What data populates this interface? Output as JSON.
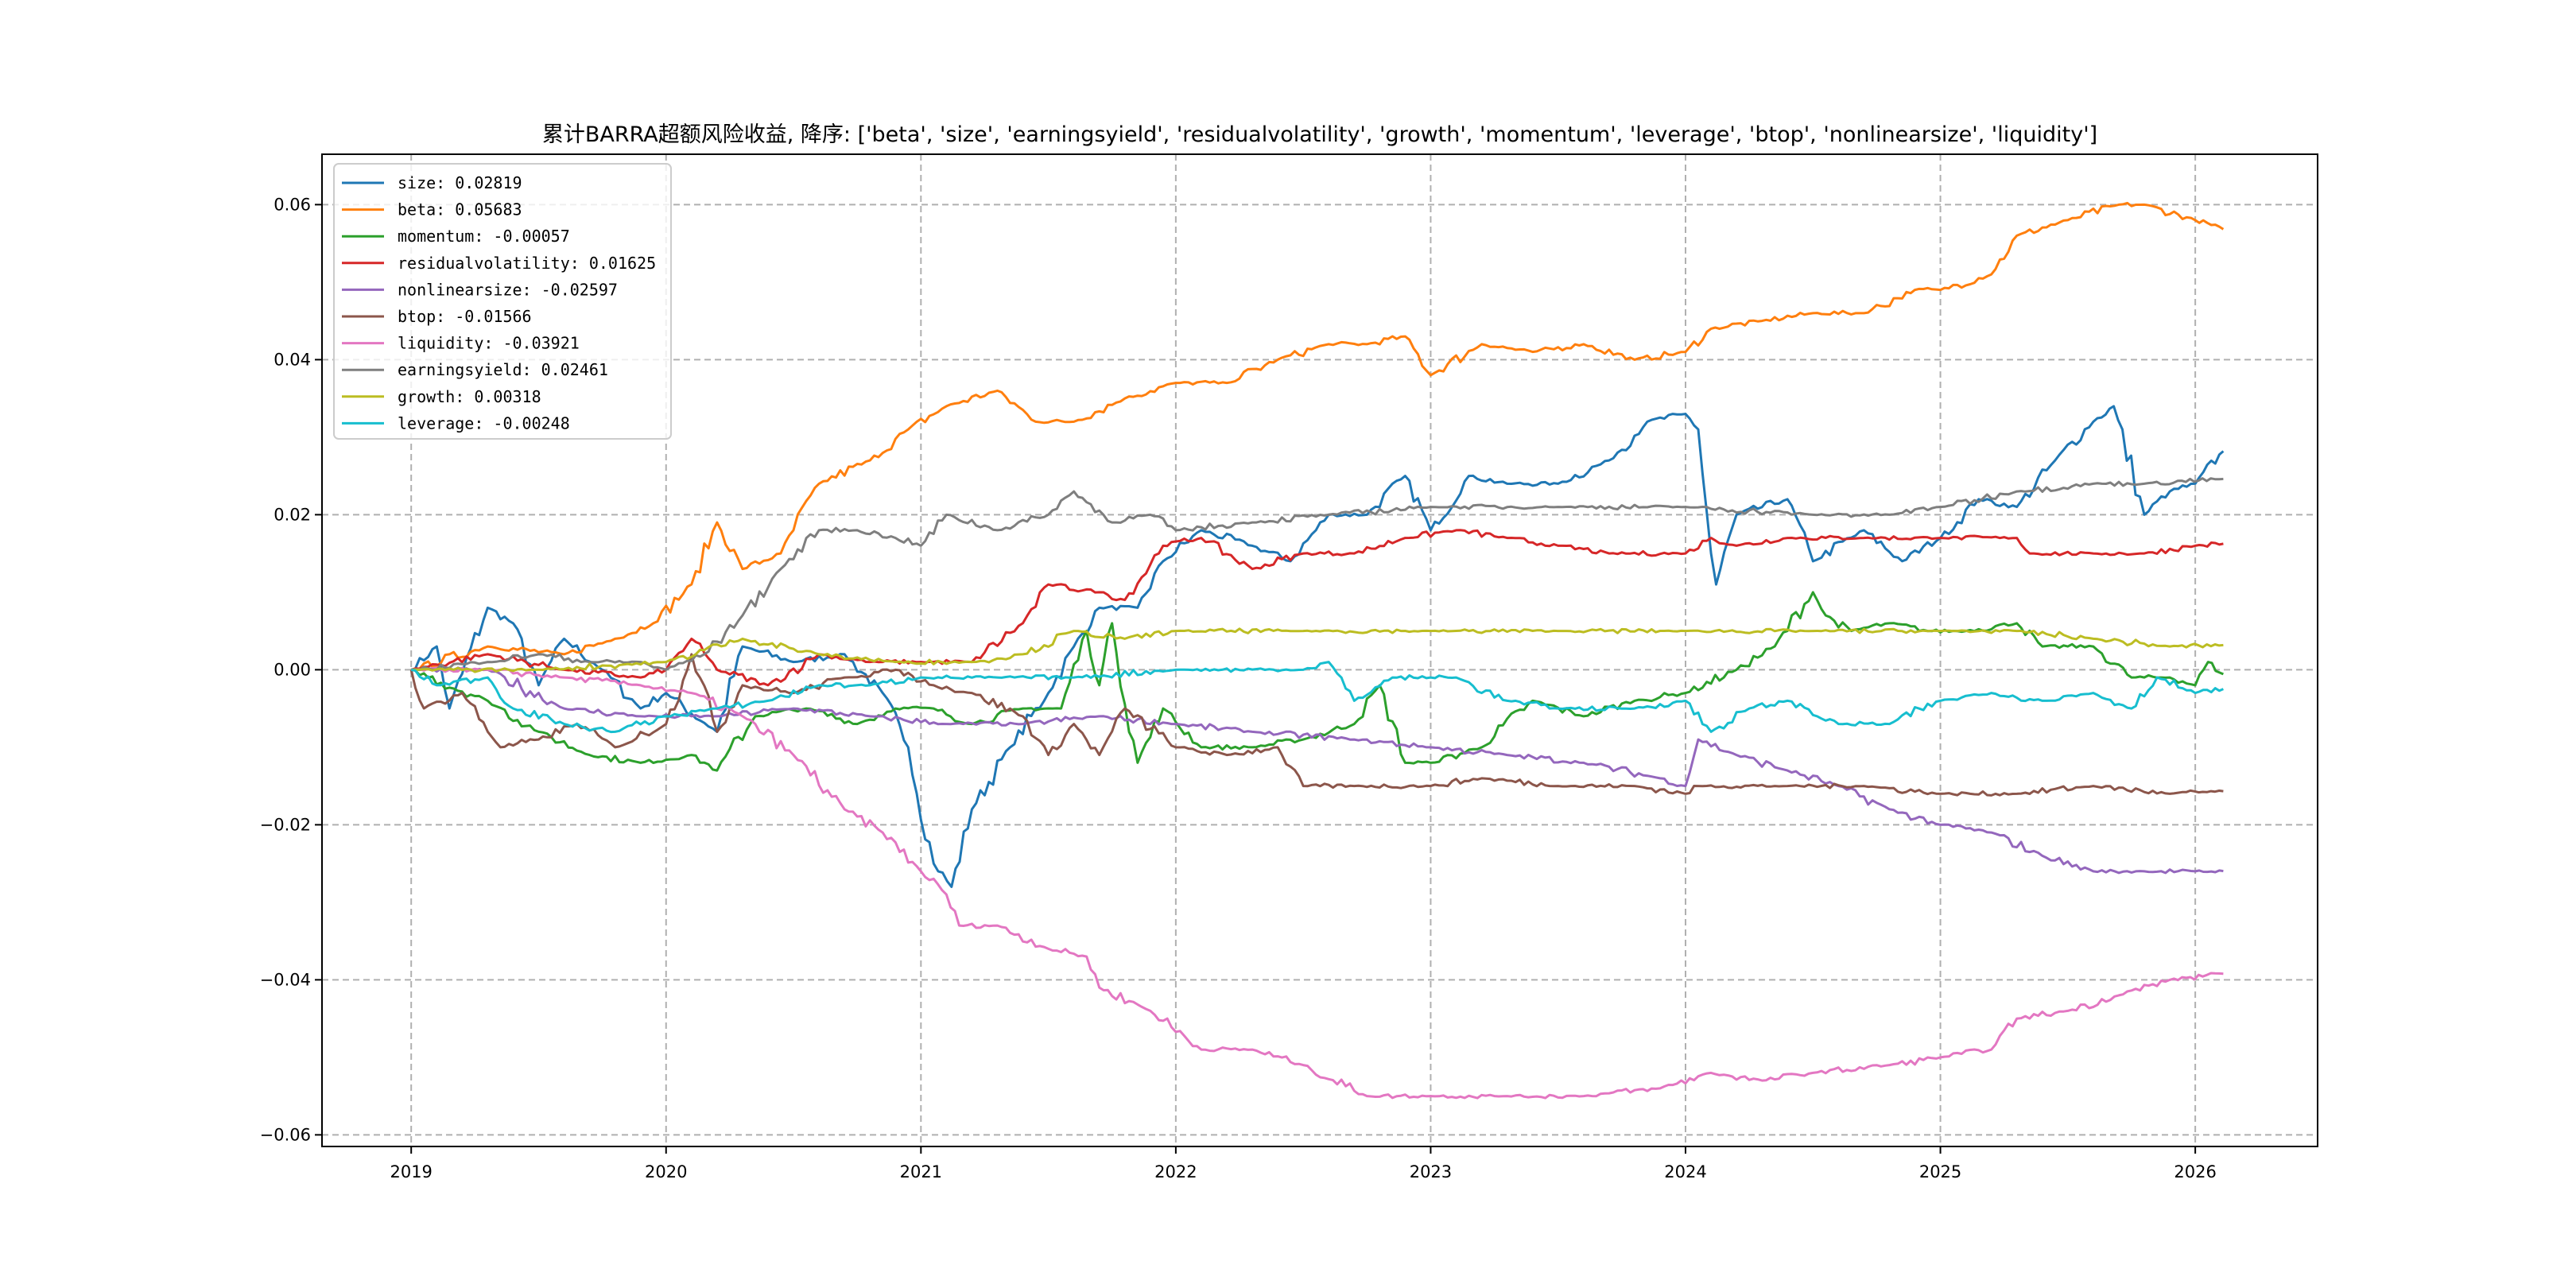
{
  "chart_data": {
    "type": "line",
    "title": "累计BARRA超额风险收益,  降序: ['beta', 'size', 'earningsyield', 'residualvolatility', 'growth', 'momentum', 'leverage', 'btop', 'nonlinearsize', 'liquidity']",
    "xlabel": "",
    "ylabel": "",
    "xlim": [
      2018.65,
      2026.48
    ],
    "ylim": [
      -0.0615,
      0.0665
    ],
    "xticks": [
      2019,
      2020,
      2021,
      2022,
      2023,
      2024,
      2025,
      2026
    ],
    "xtick_labels": [
      "2019",
      "2020",
      "2021",
      "2022",
      "2023",
      "2024",
      "2025",
      "2026"
    ],
    "yticks": [
      0.06,
      0.04,
      0.02,
      0.0,
      -0.02,
      -0.04,
      -0.06
    ],
    "ytick_labels": [
      "0.06",
      "0.04",
      "0.02",
      "0.00",
      "−0.02",
      "−0.04",
      "−0.06"
    ],
    "grid": true,
    "legend_position": "top-left",
    "series": [
      {
        "name": "size",
        "label": "size: 0.02819",
        "color": "#1f77b4",
        "x": [
          2019,
          2019.1,
          2019.15,
          2019.3,
          2019.4,
          2019.5,
          2019.6,
          2019.75,
          2019.9,
          2020,
          2020.2,
          2020.3,
          2020.5,
          2020.7,
          2020.85,
          2020.95,
          2021.05,
          2021.12,
          2021.2,
          2021.35,
          2021.5,
          2021.6,
          2021.7,
          2021.85,
          2021.95,
          2022.1,
          2022.3,
          2022.45,
          2022.6,
          2022.75,
          2022.9,
          2023,
          2023.15,
          2023.3,
          2023.5,
          2023.7,
          2023.85,
          2024,
          2024.05,
          2024.1,
          2024.12,
          2024.2,
          2024.4,
          2024.5,
          2024.7,
          2024.85,
          2025,
          2025.15,
          2025.3,
          2025.45,
          2025.6,
          2025.68,
          2025.8,
          2025.9,
          2026,
          2026.11
        ],
        "y": [
          0,
          0.003,
          -0.005,
          0.008,
          0.006,
          -0.002,
          0.004,
          0,
          -0.005,
          -0.003,
          -0.008,
          0.003,
          0.001,
          0.002,
          -0.003,
          -0.01,
          -0.025,
          -0.028,
          -0.018,
          -0.01,
          -0.003,
          0.003,
          0.008,
          0.008,
          0.014,
          0.018,
          0.016,
          0.014,
          0.02,
          0.02,
          0.025,
          0.018,
          0.025,
          0.024,
          0.024,
          0.027,
          0.032,
          0.033,
          0.031,
          0.015,
          0.011,
          0.02,
          0.022,
          0.014,
          0.018,
          0.014,
          0.017,
          0.022,
          0.021,
          0.027,
          0.032,
          0.034,
          0.02,
          0.023,
          0.024,
          0.02819
        ]
      },
      {
        "name": "beta",
        "label": "beta: 0.05683",
        "color": "#ff7f0e",
        "x": [
          2019,
          2019.3,
          2019.6,
          2019.8,
          2019.95,
          2020.1,
          2020.2,
          2020.3,
          2020.45,
          2020.6,
          2020.8,
          2020.95,
          2021.1,
          2021.3,
          2021.45,
          2021.6,
          2021.8,
          2022,
          2022.2,
          2022.4,
          2022.6,
          2022.75,
          2022.9,
          2023,
          2023.2,
          2023.4,
          2023.6,
          2023.8,
          2024,
          2024.1,
          2024.3,
          2024.5,
          2024.7,
          2024.9,
          2025,
          2025.2,
          2025.3,
          2025.5,
          2025.7,
          2025.8,
          2026,
          2026.11
        ],
        "y": [
          0,
          0.003,
          0.002,
          0.004,
          0.006,
          0.011,
          0.019,
          0.013,
          0.015,
          0.024,
          0.027,
          0.031,
          0.034,
          0.036,
          0.032,
          0.032,
          0.035,
          0.037,
          0.037,
          0.04,
          0.042,
          0.042,
          0.043,
          0.038,
          0.042,
          0.041,
          0.042,
          0.04,
          0.041,
          0.044,
          0.045,
          0.046,
          0.046,
          0.049,
          0.049,
          0.051,
          0.056,
          0.058,
          0.06,
          0.06,
          0.058,
          0.05683
        ]
      },
      {
        "name": "momentum",
        "label": "momentum: -0.00057",
        "color": "#2ca02c",
        "x": [
          2019,
          2019.3,
          2019.5,
          2019.7,
          2019.9,
          2020.1,
          2020.2,
          2020.35,
          2020.55,
          2020.75,
          2020.9,
          2021.05,
          2021.2,
          2021.4,
          2021.55,
          2021.65,
          2021.7,
          2021.75,
          2021.85,
          2021.95,
          2022.1,
          2022.3,
          2022.5,
          2022.7,
          2022.8,
          2022.9,
          2023,
          2023.2,
          2023.4,
          2023.6,
          2023.8,
          2024,
          2024.2,
          2024.35,
          2024.5,
          2024.55,
          2024.65,
          2024.8,
          2024.95,
          2025.1,
          2025.3,
          2025.4,
          2025.6,
          2025.75,
          2025.9,
          2026,
          2026.05,
          2026.11
        ],
        "y": [
          0,
          -0.004,
          -0.008,
          -0.011,
          -0.012,
          -0.011,
          -0.013,
          -0.006,
          -0.005,
          -0.007,
          -0.005,
          -0.005,
          -0.007,
          -0.005,
          -0.005,
          0.005,
          -0.002,
          0.006,
          -0.012,
          -0.005,
          -0.01,
          -0.01,
          -0.009,
          -0.007,
          -0.002,
          -0.012,
          -0.012,
          -0.01,
          -0.004,
          -0.006,
          -0.004,
          -0.003,
          0,
          0.003,
          0.01,
          0.007,
          0.005,
          0.006,
          0.005,
          0.005,
          0.006,
          0.003,
          0.003,
          -0.001,
          -0.001,
          -0.002,
          0.001,
          -0.00057
        ]
      },
      {
        "name": "residualvolatility",
        "label": "residualvolatility: 0.01625",
        "color": "#d62728",
        "x": [
          2019,
          2019.3,
          2019.6,
          2019.9,
          2020,
          2020.1,
          2020.2,
          2020.4,
          2020.6,
          2020.8,
          2021,
          2021.2,
          2021.4,
          2021.5,
          2021.7,
          2021.8,
          2021.95,
          2022.1,
          2022.3,
          2022.5,
          2022.7,
          2022.9,
          2023.1,
          2023.3,
          2023.5,
          2023.7,
          2024,
          2024.1,
          2024.2,
          2024.4,
          2024.7,
          2025,
          2025.3,
          2025.35,
          2025.6,
          2025.8,
          2026,
          2026.11
        ],
        "y": [
          0,
          0.002,
          0,
          -0.001,
          0,
          0.004,
          0,
          -0.002,
          0.002,
          0.001,
          0.001,
          0.001,
          0.006,
          0.011,
          0.01,
          0.009,
          0.016,
          0.017,
          0.013,
          0.015,
          0.015,
          0.017,
          0.018,
          0.017,
          0.016,
          0.015,
          0.015,
          0.017,
          0.016,
          0.017,
          0.017,
          0.017,
          0.017,
          0.015,
          0.015,
          0.015,
          0.016,
          0.01625
        ]
      },
      {
        "name": "nonlinearsize",
        "label": "nonlinearsize: -0.02597",
        "color": "#9467bd",
        "x": [
          2019,
          2019.3,
          2019.6,
          2019.9,
          2020.2,
          2020.5,
          2020.8,
          2021.1,
          2021.4,
          2021.7,
          2022,
          2022.3,
          2022.7,
          2023,
          2023.3,
          2023.6,
          2023.9,
          2024,
          2024.05,
          2024.2,
          2024.4,
          2024.6,
          2024.8,
          2025,
          2025.2,
          2025.4,
          2025.6,
          2025.8,
          2026,
          2026.11
        ],
        "y": [
          0,
          0,
          -0.005,
          -0.006,
          -0.006,
          -0.005,
          -0.006,
          -0.007,
          -0.007,
          -0.006,
          -0.007,
          -0.008,
          -0.009,
          -0.01,
          -0.011,
          -0.012,
          -0.014,
          -0.015,
          -0.009,
          -0.011,
          -0.013,
          -0.015,
          -0.018,
          -0.02,
          -0.021,
          -0.024,
          -0.026,
          -0.026,
          -0.026,
          -0.02597
        ]
      },
      {
        "name": "btop",
        "label": "btop: -0.01566",
        "color": "#8c564b",
        "x": [
          2019,
          2019.05,
          2019.2,
          2019.35,
          2019.5,
          2019.65,
          2019.8,
          2020,
          2020.1,
          2020.2,
          2020.3,
          2020.5,
          2020.7,
          2020.9,
          2021.05,
          2021.2,
          2021.4,
          2021.5,
          2021.6,
          2021.7,
          2021.8,
          2022,
          2022.2,
          2022.4,
          2022.5,
          2022.7,
          2023,
          2023.2,
          2023.5,
          2023.8,
          2024,
          2024.05,
          2024.4,
          2024.7,
          2025,
          2025.3,
          2025.6,
          2025.9,
          2026.11
        ],
        "y": [
          0,
          -0.005,
          -0.003,
          -0.01,
          -0.009,
          -0.007,
          -0.01,
          -0.007,
          0.002,
          -0.008,
          -0.002,
          -0.003,
          -0.001,
          0,
          -0.002,
          -0.003,
          -0.006,
          -0.011,
          -0.007,
          -0.011,
          -0.005,
          -0.01,
          -0.011,
          -0.01,
          -0.015,
          -0.015,
          -0.015,
          -0.014,
          -0.015,
          -0.015,
          -0.016,
          -0.015,
          -0.015,
          -0.015,
          -0.016,
          -0.016,
          -0.015,
          -0.016,
          -0.01566
        ]
      },
      {
        "name": "liquidity",
        "label": "liquidity: -0.03921",
        "color": "#e377c2",
        "x": [
          2019,
          2019.3,
          2019.6,
          2019.9,
          2020.1,
          2020.3,
          2020.5,
          2020.7,
          2020.85,
          2021,
          2021.1,
          2021.15,
          2021.3,
          2021.5,
          2021.65,
          2021.7,
          2021.9,
          2022.1,
          2022.3,
          2022.5,
          2022.75,
          2023,
          2023.3,
          2023.6,
          2023.9,
          2024.1,
          2024.3,
          2024.5,
          2024.8,
          2025,
          2025.2,
          2025.3,
          2025.5,
          2025.7,
          2025.9,
          2026.11
        ],
        "y": [
          0,
          0,
          -0.001,
          -0.002,
          -0.003,
          -0.006,
          -0.011,
          -0.018,
          -0.021,
          -0.026,
          -0.029,
          -0.033,
          -0.033,
          -0.036,
          -0.037,
          -0.041,
          -0.044,
          -0.049,
          -0.049,
          -0.051,
          -0.055,
          -0.055,
          -0.055,
          -0.055,
          -0.054,
          -0.052,
          -0.053,
          -0.052,
          -0.051,
          -0.05,
          -0.049,
          -0.045,
          -0.044,
          -0.042,
          -0.04,
          -0.03921
        ]
      },
      {
        "name": "earningsyield",
        "label": "earningsyield: 0.02461",
        "color": "#7f7f7f",
        "x": [
          2019,
          2019.3,
          2019.5,
          2019.7,
          2019.9,
          2020,
          2020.15,
          2020.3,
          2020.45,
          2020.6,
          2020.75,
          2020.9,
          2021,
          2021.1,
          2021.3,
          2021.5,
          2021.6,
          2021.75,
          2021.9,
          2022,
          2022.3,
          2022.6,
          2023,
          2023.5,
          2024,
          2024.5,
          2024.8,
          2025,
          2025.3,
          2025.6,
          2025.8,
          2026.11
        ],
        "y": [
          0,
          0.001,
          0.002,
          0.001,
          0.001,
          0,
          0.002,
          0.007,
          0.013,
          0.018,
          0.018,
          0.017,
          0.016,
          0.02,
          0.018,
          0.02,
          0.023,
          0.019,
          0.02,
          0.018,
          0.019,
          0.02,
          0.021,
          0.021,
          0.021,
          0.02,
          0.02,
          0.021,
          0.023,
          0.024,
          0.024,
          0.02461
        ]
      },
      {
        "name": "growth",
        "label": "growth: 0.00318",
        "color": "#bcbd22",
        "x": [
          2019,
          2019.5,
          2020,
          2020.3,
          2020.6,
          2020.9,
          2021.2,
          2021.4,
          2021.6,
          2021.8,
          2022,
          2022.5,
          2023,
          2023.5,
          2024,
          2024.5,
          2025,
          2025.3,
          2025.6,
          2025.9,
          2026.11
        ],
        "y": [
          0,
          0,
          0.001,
          0.004,
          0.002,
          0.001,
          0.001,
          0.002,
          0.005,
          0.004,
          0.005,
          0.005,
          0.005,
          0.005,
          0.005,
          0.005,
          0.005,
          0.005,
          0.004,
          0.003,
          0.00318
        ]
      },
      {
        "name": "leverage",
        "label": "leverage: -0.00248",
        "color": "#17becf",
        "x": [
          2019,
          2019.1,
          2019.3,
          2019.4,
          2019.6,
          2019.8,
          2020,
          2020.2,
          2020.4,
          2020.6,
          2020.8,
          2021,
          2021.3,
          2021.6,
          2022,
          2022.5,
          2022.6,
          2022.7,
          2022.85,
          2023,
          2023.1,
          2023.3,
          2023.5,
          2023.8,
          2024,
          2024.1,
          2024.25,
          2024.4,
          2024.6,
          2024.8,
          2025,
          2025.2,
          2025.4,
          2025.6,
          2025.75,
          2025.85,
          2026,
          2026.11
        ],
        "y": [
          0,
          -0.002,
          -0.001,
          -0.005,
          -0.007,
          -0.008,
          -0.006,
          -0.005,
          -0.004,
          -0.002,
          -0.002,
          -0.001,
          -0.001,
          -0.001,
          0,
          0,
          0.001,
          -0.004,
          -0.001,
          -0.001,
          -0.001,
          -0.004,
          -0.005,
          -0.005,
          -0.004,
          -0.008,
          -0.005,
          -0.004,
          -0.007,
          -0.007,
          -0.004,
          -0.003,
          -0.004,
          -0.003,
          -0.005,
          -0.001,
          -0.003,
          -0.00248
        ]
      }
    ]
  }
}
